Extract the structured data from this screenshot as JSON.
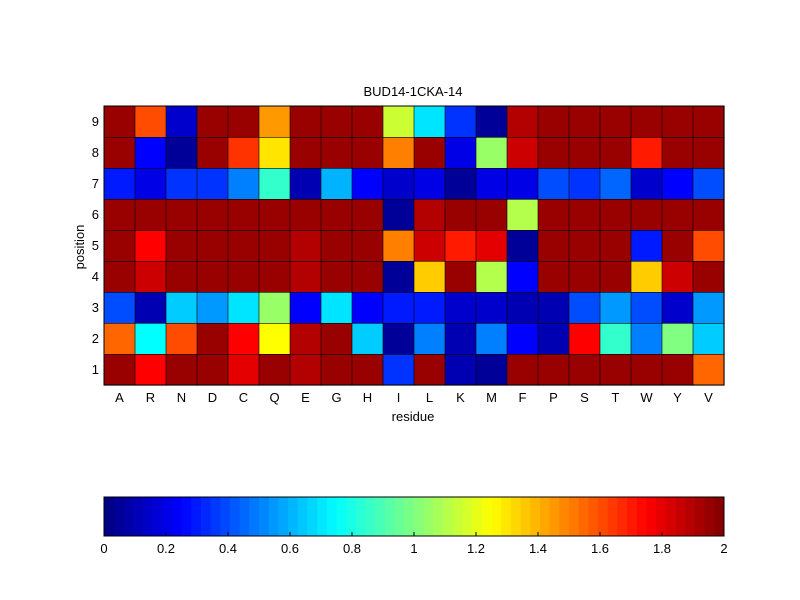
{
  "chart_data": {
    "type": "heatmap",
    "title": "BUD14-1CKA-14",
    "xlabel": "residue",
    "ylabel": "position",
    "x_categories": [
      "A",
      "R",
      "N",
      "D",
      "C",
      "Q",
      "E",
      "G",
      "H",
      "I",
      "L",
      "K",
      "M",
      "F",
      "P",
      "S",
      "T",
      "W",
      "Y",
      "V"
    ],
    "y_categories": [
      "1",
      "2",
      "3",
      "4",
      "5",
      "6",
      "7",
      "8",
      "9"
    ],
    "values": [
      [
        1.95,
        1.75,
        1.95,
        1.95,
        1.8,
        1.95,
        1.9,
        1.95,
        1.95,
        0.35,
        1.95,
        0.1,
        0.05,
        1.95,
        1.95,
        1.95,
        1.95,
        1.95,
        1.95,
        1.55
      ],
      [
        1.55,
        0.75,
        1.6,
        1.95,
        1.75,
        1.25,
        1.9,
        1.95,
        0.65,
        0.05,
        0.5,
        0.1,
        0.5,
        0.25,
        0.1,
        1.75,
        0.85,
        0.5,
        1.0,
        0.65
      ],
      [
        0.4,
        0.1,
        0.65,
        0.55,
        0.7,
        1.05,
        0.25,
        0.7,
        0.25,
        0.3,
        0.3,
        0.15,
        0.15,
        0.1,
        0.1,
        0.4,
        0.55,
        0.4,
        0.15,
        0.55
      ],
      [
        1.95,
        1.85,
        1.95,
        1.95,
        1.95,
        1.95,
        1.9,
        1.95,
        1.95,
        0.05,
        1.35,
        1.95,
        1.1,
        0.25,
        1.95,
        1.95,
        1.95,
        1.35,
        1.85,
        1.95
      ],
      [
        1.95,
        1.75,
        1.95,
        1.95,
        1.95,
        1.95,
        1.9,
        1.95,
        1.95,
        1.5,
        1.85,
        1.7,
        1.8,
        0.05,
        1.95,
        1.95,
        1.95,
        0.3,
        1.95,
        1.6
      ],
      [
        1.95,
        1.95,
        1.95,
        1.95,
        1.95,
        1.95,
        1.95,
        1.95,
        1.95,
        0.05,
        1.9,
        1.95,
        1.95,
        1.1,
        1.95,
        1.95,
        1.95,
        1.95,
        1.95,
        1.95
      ],
      [
        0.3,
        0.2,
        0.35,
        0.35,
        0.5,
        0.85,
        0.1,
        0.6,
        0.25,
        0.15,
        0.2,
        0.05,
        0.2,
        0.2,
        0.4,
        0.35,
        0.45,
        0.15,
        0.25,
        0.4
      ],
      [
        1.95,
        0.25,
        0.05,
        1.95,
        1.65,
        1.3,
        1.95,
        1.95,
        1.95,
        1.5,
        1.95,
        0.2,
        1.05,
        1.85,
        1.95,
        1.95,
        1.95,
        1.7,
        1.95,
        1.95
      ],
      [
        1.95,
        1.6,
        0.15,
        1.95,
        1.95,
        1.45,
        1.95,
        1.95,
        1.95,
        1.15,
        0.7,
        0.35,
        0.05,
        1.9,
        1.95,
        1.95,
        1.95,
        1.95,
        1.95,
        1.95
      ]
    ],
    "colormap": "jet",
    "colorbar": {
      "range": [
        0,
        2
      ],
      "ticks": [
        "0",
        "0.2",
        "0.4",
        "0.6",
        "0.8",
        "1",
        "1.2",
        "1.4",
        "1.6",
        "1.8",
        "2"
      ],
      "placement": "bottom"
    },
    "grid": false
  }
}
